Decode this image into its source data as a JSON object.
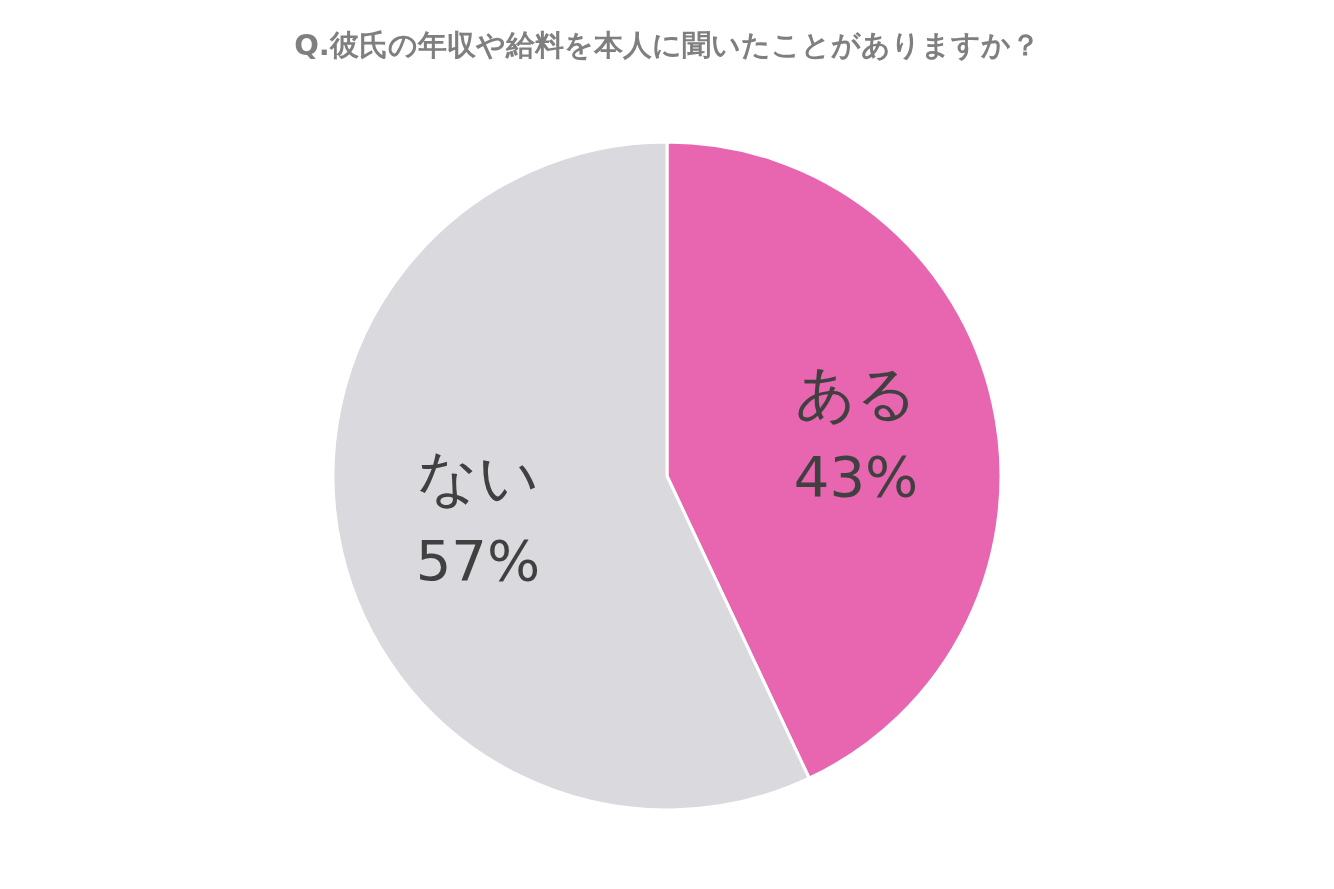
{
  "chart_data": {
    "type": "pie",
    "title": "Q.彼氏の年収や給料を本人に聞いたことがありますか？",
    "categories": [
      "ある",
      "ない"
    ],
    "values": [
      43,
      57
    ],
    "colors": [
      "#e865b0",
      "#d9d9de"
    ],
    "value_labels": [
      "43%",
      "57%"
    ]
  }
}
